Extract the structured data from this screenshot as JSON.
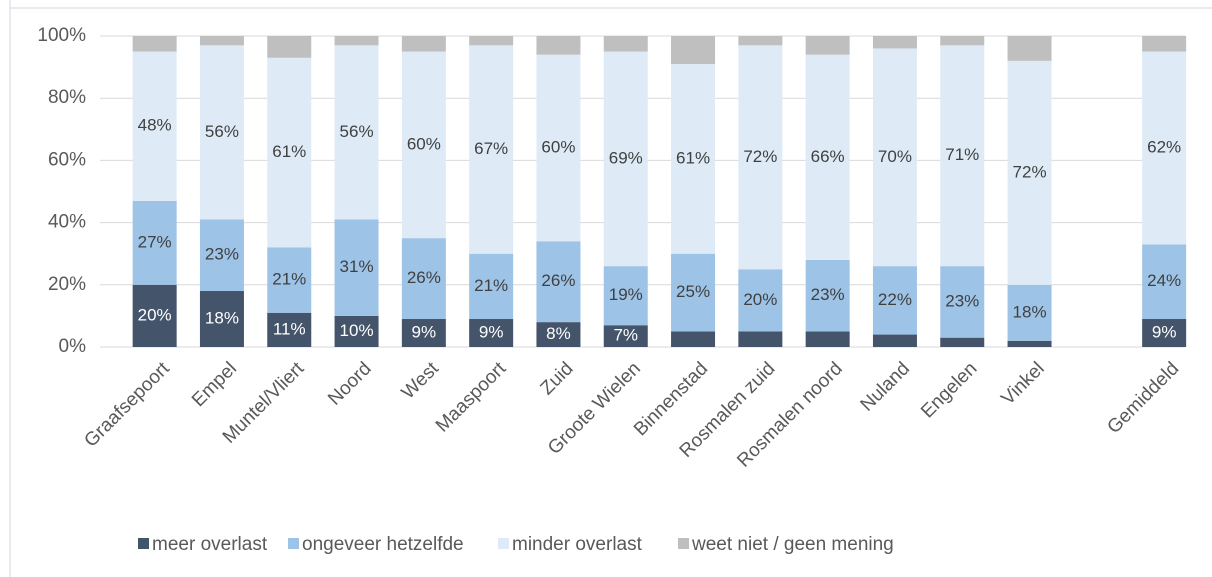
{
  "chart_data": {
    "type": "stacked_bar",
    "categories": [
      "Graafsepoort",
      "Empel",
      "Muntel/Vliert",
      "Noord",
      "West",
      "Maaspoort",
      "Zuid",
      "Groote Wielen",
      "Binnenstad",
      "Rosmalen zuid",
      "Rosmalen noord",
      "Nuland",
      "Engelen",
      "Vinkel",
      null,
      "Gemiddeld"
    ],
    "series": [
      {
        "name": "meer overlast",
        "color": "#44546a",
        "values": [
          20,
          18,
          11,
          10,
          9,
          9,
          8,
          7,
          5,
          5,
          5,
          4,
          3,
          2,
          null,
          9
        ],
        "value_labels": [
          "20%",
          "18%",
          "11%",
          "10%",
          "9%",
          "9%",
          "8%",
          "7%",
          null,
          null,
          null,
          null,
          null,
          null,
          null,
          "9%"
        ]
      },
      {
        "name": "ongeveer hetzelfde",
        "color": "#9dc3e6",
        "values": [
          27,
          23,
          21,
          31,
          26,
          21,
          26,
          19,
          25,
          20,
          23,
          22,
          23,
          18,
          null,
          24
        ],
        "value_labels": [
          "27%",
          "23%",
          "21%",
          "31%",
          "26%",
          "21%",
          "26%",
          "19%",
          "25%",
          "20%",
          "23%",
          "22%",
          "23%",
          "18%",
          null,
          "24%"
        ]
      },
      {
        "name": "minder overlast",
        "color": "#deebf7",
        "values": [
          48,
          56,
          61,
          56,
          60,
          67,
          60,
          69,
          61,
          72,
          66,
          70,
          71,
          72,
          null,
          62
        ],
        "value_labels": [
          "48%",
          "56%",
          "61%",
          "56%",
          "60%",
          "67%",
          "60%",
          "69%",
          "61%",
          "72%",
          "66%",
          "70%",
          "71%",
          "72%",
          null,
          "62%"
        ]
      },
      {
        "name": "weet niet / geen mening",
        "color": "#bfbfbf",
        "values": [
          5,
          3,
          7,
          3,
          5,
          3,
          6,
          5,
          9,
          3,
          6,
          4,
          3,
          8,
          null,
          5
        ]
      }
    ],
    "ylim": [
      0,
      100
    ],
    "yticks": [
      {
        "value": 0,
        "label": "0%"
      },
      {
        "value": 20,
        "label": "20%"
      },
      {
        "value": 40,
        "label": "40%"
      },
      {
        "value": 60,
        "label": "60%"
      },
      {
        "value": 80,
        "label": "80%"
      },
      {
        "value": 100,
        "label": "100%"
      }
    ],
    "grid": true,
    "legend": "bottom"
  }
}
